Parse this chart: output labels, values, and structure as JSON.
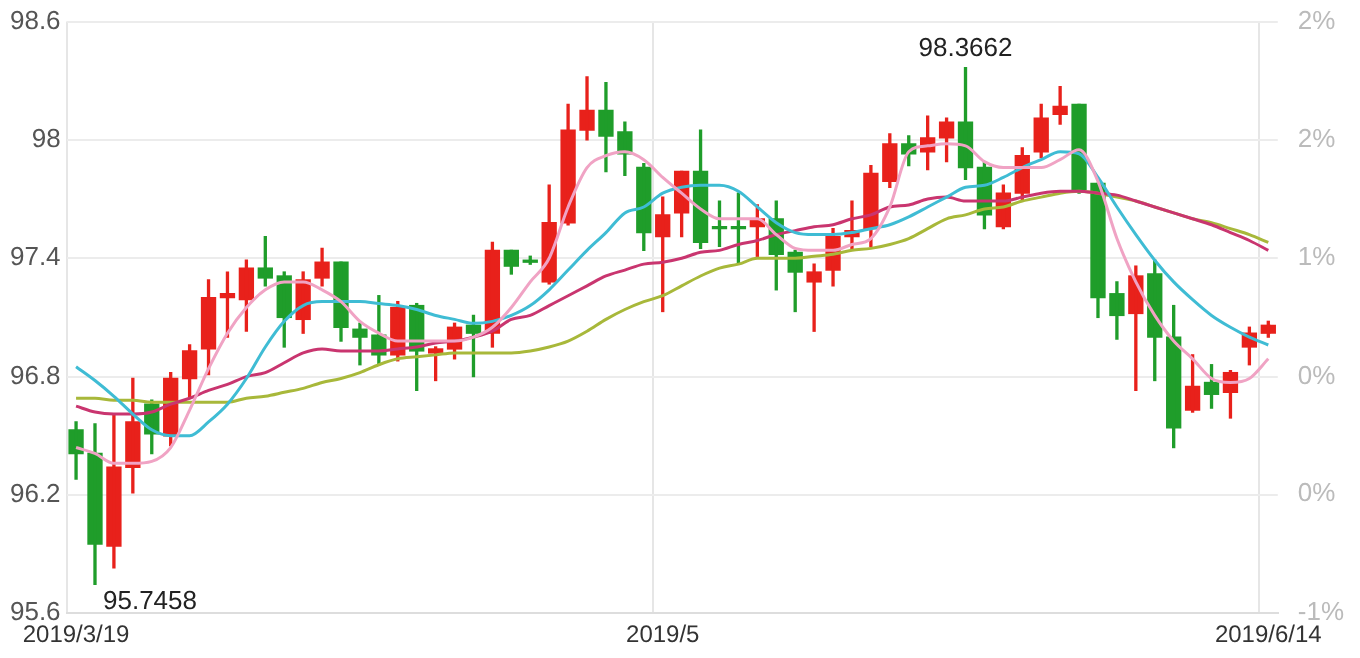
{
  "chart_data": {
    "type": "candlestick",
    "categories": [
      "2019/3/19",
      null,
      null,
      null,
      null,
      null,
      null,
      null,
      null,
      null,
      null,
      null,
      null,
      null,
      null,
      null,
      null,
      null,
      null,
      null,
      null,
      null,
      null,
      null,
      null,
      null,
      null,
      null,
      null,
      null,
      null,
      "2019/5",
      null,
      null,
      null,
      null,
      null,
      null,
      null,
      null,
      null,
      null,
      null,
      null,
      null,
      null,
      null,
      null,
      null,
      null,
      null,
      null,
      null,
      null,
      null,
      null,
      null,
      null,
      null,
      null,
      null,
      null,
      null,
      "2019/6/14"
    ],
    "ohlc": [
      [
        96.53,
        96.57,
        96.28,
        96.41
      ],
      [
        96.41,
        96.56,
        95.7458,
        95.95
      ],
      [
        95.94,
        96.61,
        95.83,
        96.34
      ],
      [
        96.34,
        96.79,
        96.21,
        96.57
      ],
      [
        96.66,
        96.68,
        96.41,
        96.51
      ],
      [
        96.5,
        96.82,
        96.45,
        96.79
      ],
      [
        96.79,
        96.96,
        96.7,
        96.93
      ],
      [
        96.94,
        97.29,
        96.81,
        97.2
      ],
      [
        97.2,
        97.33,
        97.0,
        97.22
      ],
      [
        97.19,
        97.39,
        97.03,
        97.35
      ],
      [
        97.35,
        97.51,
        97.26,
        97.3
      ],
      [
        97.31,
        97.33,
        96.95,
        97.1
      ],
      [
        97.09,
        97.33,
        97.02,
        97.29
      ],
      [
        97.3,
        97.45,
        97.26,
        97.38
      ],
      [
        97.38,
        97.38,
        96.98,
        97.05
      ],
      [
        97.04,
        97.07,
        96.86,
        97.0
      ],
      [
        97.01,
        97.21,
        96.86,
        96.91
      ],
      [
        96.91,
        97.18,
        96.88,
        97.15
      ],
      [
        97.16,
        97.17,
        96.73,
        96.93
      ],
      [
        96.92,
        96.95,
        96.78,
        96.94
      ],
      [
        96.94,
        97.07,
        96.89,
        97.05
      ],
      [
        97.06,
        97.11,
        96.8,
        97.02
      ],
      [
        97.02,
        97.48,
        96.95,
        97.44
      ],
      [
        97.44,
        97.44,
        97.32,
        97.36
      ],
      [
        97.39,
        97.41,
        97.37,
        97.38
      ],
      [
        97.28,
        97.77,
        97.27,
        97.58
      ],
      [
        97.58,
        98.18,
        97.57,
        98.05
      ],
      [
        98.05,
        98.32,
        98.0,
        98.15
      ],
      [
        98.15,
        98.29,
        97.84,
        98.02
      ],
      [
        98.04,
        98.09,
        97.82,
        97.93
      ],
      [
        97.86,
        97.88,
        97.44,
        97.53
      ],
      [
        97.51,
        97.71,
        97.13,
        97.62
      ],
      [
        97.63,
        97.84,
        97.51,
        97.84
      ],
      [
        97.84,
        98.05,
        97.45,
        97.48
      ],
      [
        97.56,
        97.69,
        97.46,
        97.55
      ],
      [
        97.56,
        97.73,
        97.37,
        97.55
      ],
      [
        97.56,
        97.67,
        97.41,
        97.6
      ],
      [
        97.6,
        97.69,
        97.24,
        97.42
      ],
      [
        97.43,
        97.44,
        97.13,
        97.33
      ],
      [
        97.28,
        97.37,
        97.03,
        97.33
      ],
      [
        97.34,
        97.55,
        97.26,
        97.51
      ],
      [
        97.51,
        97.69,
        97.44,
        97.54
      ],
      [
        97.55,
        97.87,
        97.46,
        97.83
      ],
      [
        97.79,
        98.03,
        97.76,
        97.98
      ],
      [
        97.98,
        98.02,
        97.87,
        97.93
      ],
      [
        97.94,
        98.12,
        97.85,
        98.01
      ],
      [
        98.01,
        98.11,
        97.89,
        98.09
      ],
      [
        98.09,
        98.3662,
        97.8,
        97.86
      ],
      [
        97.86,
        97.89,
        97.55,
        97.62
      ],
      [
        97.56,
        97.77,
        97.55,
        97.73
      ],
      [
        97.73,
        97.96,
        97.69,
        97.92
      ],
      [
        97.94,
        98.18,
        97.91,
        98.11
      ],
      [
        98.13,
        98.27,
        98.08,
        98.17
      ],
      [
        98.18,
        98.18,
        97.73,
        97.75
      ],
      [
        97.78,
        97.78,
        97.1,
        97.2
      ],
      [
        97.22,
        97.28,
        96.99,
        97.11
      ],
      [
        97.12,
        97.36,
        96.73,
        97.31
      ],
      [
        97.32,
        97.39,
        96.78,
        97.0
      ],
      [
        97.0,
        97.16,
        96.44,
        96.54
      ],
      [
        96.63,
        96.91,
        96.62,
        96.75
      ],
      [
        96.77,
        96.86,
        96.64,
        96.71
      ],
      [
        96.72,
        96.83,
        96.59,
        96.82
      ],
      [
        96.95,
        97.05,
        96.86,
        97.02
      ],
      [
        97.02,
        97.08,
        97.0,
        97.06
      ]
    ],
    "colors": [
      "#1f9d2a",
      "#1f9d2a",
      "#e8211b",
      "#e8211b",
      "#1f9d2a",
      "#e8211b",
      "#e8211b",
      "#e8211b",
      "#e8211b",
      "#e8211b",
      "#1f9d2a",
      "#1f9d2a",
      "#e8211b",
      "#e8211b",
      "#1f9d2a",
      "#1f9d2a",
      "#1f9d2a",
      "#e8211b",
      "#1f9d2a",
      "#e8211b",
      "#e8211b",
      "#1f9d2a",
      "#e8211b",
      "#1f9d2a",
      "#1f9d2a",
      "#e8211b",
      "#e8211b",
      "#e8211b",
      "#1f9d2a",
      "#1f9d2a",
      "#1f9d2a",
      "#e8211b",
      "#e8211b",
      "#1f9d2a",
      "#1f9d2a",
      "#1f9d2a",
      "#e8211b",
      "#1f9d2a",
      "#1f9d2a",
      "#e8211b",
      "#e8211b",
      "#e8211b",
      "#e8211b",
      "#e8211b",
      "#1f9d2a",
      "#e8211b",
      "#e8211b",
      "#1f9d2a",
      "#1f9d2a",
      "#e8211b",
      "#e8211b",
      "#e8211b",
      "#e8211b",
      "#1f9d2a",
      "#1f9d2a",
      "#1f9d2a",
      "#e8211b",
      "#1f9d2a",
      "#1f9d2a",
      "#e8211b",
      "#1f9d2a",
      "#e8211b",
      "#e8211b",
      "#e8211b"
    ],
    "series": [
      {
        "type": "line",
        "color": "#f0a3c4",
        "values": [
          96.44,
          96.41,
          96.36,
          96.36,
          96.37,
          96.44,
          96.63,
          96.84,
          97.02,
          97.15,
          97.24,
          97.28,
          97.28,
          97.24,
          97.18,
          97.08,
          97.02,
          96.98,
          96.98,
          96.98,
          96.98,
          97.0,
          97.05,
          97.15,
          97.28,
          97.4,
          97.66,
          97.86,
          97.92,
          97.94,
          97.9,
          97.81,
          97.73,
          97.65,
          97.6,
          97.6,
          97.6,
          97.52,
          97.45,
          97.44,
          97.44,
          97.47,
          97.5,
          97.66,
          97.94,
          97.97,
          97.98,
          97.97,
          97.89,
          97.86,
          97.86,
          97.86,
          97.9,
          97.95,
          97.79,
          97.5,
          97.28,
          97.11,
          96.98,
          96.89,
          96.79,
          96.77,
          96.79,
          96.89
        ]
      },
      {
        "type": "line",
        "color": "#3fbcd4",
        "values": [
          96.85,
          96.78,
          96.7,
          96.61,
          96.53,
          96.5,
          96.5,
          96.57,
          96.66,
          96.79,
          96.95,
          97.08,
          97.16,
          97.18,
          97.18,
          97.18,
          97.17,
          97.16,
          97.14,
          97.11,
          97.09,
          97.07,
          97.08,
          97.11,
          97.16,
          97.24,
          97.34,
          97.44,
          97.53,
          97.63,
          97.66,
          97.73,
          97.76,
          97.77,
          97.77,
          97.74,
          97.66,
          97.58,
          97.53,
          97.52,
          97.52,
          97.53,
          97.55,
          97.57,
          97.61,
          97.66,
          97.71,
          97.76,
          97.77,
          97.81,
          97.86,
          97.9,
          97.94,
          97.93,
          97.81,
          97.66,
          97.52,
          97.39,
          97.28,
          97.19,
          97.11,
          97.05,
          97.0,
          96.96
        ]
      },
      {
        "type": "line",
        "color": "#c9356f",
        "values": [
          96.65,
          96.62,
          96.61,
          96.61,
          96.62,
          96.66,
          96.69,
          96.73,
          96.76,
          96.8,
          96.82,
          96.87,
          96.92,
          96.94,
          96.93,
          96.93,
          96.93,
          96.94,
          96.95,
          96.97,
          96.98,
          97.0,
          97.03,
          97.09,
          97.11,
          97.16,
          97.21,
          97.26,
          97.31,
          97.34,
          97.37,
          97.38,
          97.4,
          97.43,
          97.44,
          97.47,
          97.49,
          97.52,
          97.54,
          97.56,
          97.57,
          97.6,
          97.62,
          97.66,
          97.67,
          97.7,
          97.71,
          97.69,
          97.69,
          97.69,
          97.71,
          97.73,
          97.74,
          97.74,
          97.73,
          97.72,
          97.69,
          97.66,
          97.63,
          97.6,
          97.57,
          97.53,
          97.49,
          97.44
        ]
      },
      {
        "type": "line",
        "color": "#a8b83a",
        "values": [
          96.69,
          96.69,
          96.68,
          96.68,
          96.67,
          96.67,
          96.67,
          96.67,
          96.67,
          96.69,
          96.7,
          96.72,
          96.74,
          96.77,
          96.79,
          96.82,
          96.86,
          96.89,
          96.9,
          96.91,
          96.92,
          96.92,
          96.92,
          96.92,
          96.93,
          96.95,
          96.98,
          97.03,
          97.09,
          97.14,
          97.18,
          97.21,
          97.26,
          97.31,
          97.35,
          97.37,
          97.4,
          97.4,
          97.4,
          97.41,
          97.42,
          97.44,
          97.45,
          97.47,
          97.5,
          97.55,
          97.6,
          97.62,
          97.65,
          97.66,
          97.69,
          97.71,
          97.73,
          97.74,
          97.73,
          97.71,
          97.69,
          97.66,
          97.63,
          97.6,
          97.58,
          97.55,
          97.52,
          97.48
        ]
      }
    ],
    "ylim": [
      95.6,
      98.6
    ],
    "yticks": [
      95.6,
      96.2,
      96.8,
      97.4,
      98,
      98.6
    ],
    "y2lim": [
      -0.83,
      2.28
    ],
    "y2ticks": [
      {
        "value": -0.83,
        "label": "-1%"
      },
      {
        "value": -0.2,
        "label": "0%"
      },
      {
        "value": 0.41,
        "label": "0%"
      },
      {
        "value": 1.04,
        "label": "1%"
      },
      {
        "value": 1.66,
        "label": "2%"
      },
      {
        "value": 2.28,
        "label": "2%"
      }
    ],
    "grid": true,
    "annotations": [
      "98.3662",
      "95.7458"
    ]
  }
}
